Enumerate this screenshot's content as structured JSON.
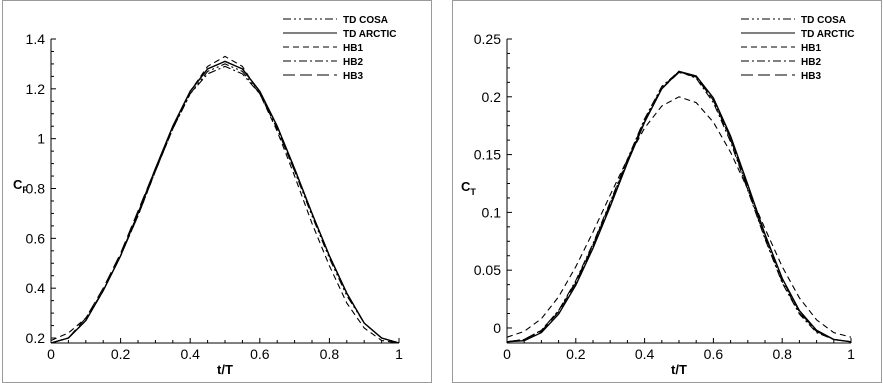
{
  "chart_data": [
    {
      "type": "line",
      "xlabel": "t/T",
      "ylabel": "C",
      "ylabel_sub": "F",
      "xlim": [
        0,
        1
      ],
      "ylim": [
        0.18,
        1.4
      ],
      "xticks": [
        "0",
        "0.2",
        "0.4",
        "0.6",
        "0.8",
        "1"
      ],
      "yticks": [
        "0.2",
        "0.4",
        "0.6",
        "0.8",
        "1",
        "1.2",
        "1.4"
      ],
      "legend_position": "top-right",
      "grid": false,
      "series": [
        {
          "name": "TD COSA",
          "style": "dashdotdot",
          "x": [
            0,
            0.05,
            0.1,
            0.15,
            0.2,
            0.25,
            0.3,
            0.35,
            0.4,
            0.45,
            0.5,
            0.55,
            0.6,
            0.65,
            0.7,
            0.75,
            0.8,
            0.85,
            0.9,
            0.95,
            1
          ],
          "y": [
            0.18,
            0.2,
            0.27,
            0.39,
            0.53,
            0.69,
            0.87,
            1.04,
            1.18,
            1.27,
            1.3,
            1.27,
            1.18,
            1.04,
            0.87,
            0.69,
            0.52,
            0.37,
            0.26,
            0.2,
            0.18
          ]
        },
        {
          "name": "TD ARCTIC",
          "style": "solid",
          "x": [
            0,
            0.05,
            0.1,
            0.15,
            0.2,
            0.25,
            0.3,
            0.35,
            0.4,
            0.45,
            0.5,
            0.55,
            0.6,
            0.65,
            0.7,
            0.75,
            0.8,
            0.85,
            0.9,
            0.95,
            1
          ],
          "y": [
            0.18,
            0.2,
            0.27,
            0.39,
            0.53,
            0.7,
            0.88,
            1.05,
            1.19,
            1.28,
            1.31,
            1.28,
            1.19,
            1.05,
            0.88,
            0.7,
            0.53,
            0.38,
            0.26,
            0.2,
            0.18
          ]
        },
        {
          "name": "HB1",
          "style": "dash",
          "x": [
            0,
            0.05,
            0.1,
            0.15,
            0.2,
            0.25,
            0.3,
            0.35,
            0.4,
            0.45,
            0.5,
            0.55,
            0.6,
            0.65,
            0.7,
            0.75,
            0.8,
            0.85,
            0.9,
            0.95,
            1
          ],
          "y": [
            0.19,
            0.22,
            0.28,
            0.39,
            0.53,
            0.69,
            0.87,
            1.04,
            1.19,
            1.29,
            1.33,
            1.29,
            1.18,
            1.03,
            0.85,
            0.66,
            0.49,
            0.34,
            0.24,
            0.19,
            0.18
          ]
        },
        {
          "name": "HB2",
          "style": "dashdot",
          "x": [
            0,
            0.05,
            0.1,
            0.15,
            0.2,
            0.25,
            0.3,
            0.35,
            0.4,
            0.45,
            0.5,
            0.55,
            0.6,
            0.65,
            0.7,
            0.75,
            0.8,
            0.85,
            0.9,
            0.95,
            1
          ],
          "y": [
            0.18,
            0.2,
            0.27,
            0.39,
            0.53,
            0.7,
            0.87,
            1.04,
            1.18,
            1.26,
            1.29,
            1.26,
            1.18,
            1.04,
            0.87,
            0.7,
            0.53,
            0.38,
            0.26,
            0.2,
            0.18
          ]
        },
        {
          "name": "HB3",
          "style": "longdash",
          "x": [
            0,
            0.05,
            0.1,
            0.15,
            0.2,
            0.25,
            0.3,
            0.35,
            0.4,
            0.45,
            0.5,
            0.55,
            0.6,
            0.65,
            0.7,
            0.75,
            0.8,
            0.85,
            0.9,
            0.95,
            1
          ],
          "y": [
            0.18,
            0.2,
            0.28,
            0.4,
            0.54,
            0.71,
            0.88,
            1.05,
            1.19,
            1.28,
            1.31,
            1.28,
            1.19,
            1.05,
            0.88,
            0.7,
            0.53,
            0.38,
            0.26,
            0.2,
            0.18
          ]
        }
      ]
    },
    {
      "type": "line",
      "xlabel": "t/T",
      "ylabel": "C",
      "ylabel_sub": "T",
      "xlim": [
        0,
        1
      ],
      "ylim": [
        -0.013,
        0.25
      ],
      "xticks": [
        "0",
        "0.2",
        "0.4",
        "0.6",
        "0.8",
        "1"
      ],
      "yticks": [
        "0",
        "0.05",
        "0.1",
        "0.15",
        "0.2",
        "0.25"
      ],
      "legend_position": "top-right",
      "grid": false,
      "series": [
        {
          "name": "TD COSA",
          "style": "dashdotdot",
          "x": [
            0,
            0.05,
            0.1,
            0.15,
            0.2,
            0.25,
            0.3,
            0.35,
            0.4,
            0.45,
            0.5,
            0.55,
            0.6,
            0.65,
            0.7,
            0.75,
            0.8,
            0.85,
            0.9,
            0.95,
            1
          ],
          "y": [
            -0.012,
            -0.01,
            -0.002,
            0.015,
            0.04,
            0.072,
            0.108,
            0.145,
            0.18,
            0.208,
            0.222,
            0.217,
            0.197,
            0.163,
            0.12,
            0.078,
            0.04,
            0.013,
            -0.003,
            -0.01,
            -0.012
          ]
        },
        {
          "name": "TD ARCTIC",
          "style": "solid",
          "x": [
            0,
            0.05,
            0.1,
            0.15,
            0.2,
            0.25,
            0.3,
            0.35,
            0.4,
            0.45,
            0.5,
            0.55,
            0.6,
            0.65,
            0.7,
            0.75,
            0.8,
            0.85,
            0.9,
            0.95,
            1
          ],
          "y": [
            -0.012,
            -0.011,
            -0.004,
            0.012,
            0.037,
            0.069,
            0.105,
            0.143,
            0.178,
            0.207,
            0.222,
            0.218,
            0.199,
            0.166,
            0.124,
            0.081,
            0.043,
            0.015,
            -0.002,
            -0.01,
            -0.012
          ]
        },
        {
          "name": "HB1",
          "style": "dash",
          "x": [
            0,
            0.05,
            0.1,
            0.15,
            0.2,
            0.25,
            0.3,
            0.35,
            0.4,
            0.45,
            0.5,
            0.55,
            0.6,
            0.65,
            0.7,
            0.75,
            0.8,
            0.85,
            0.9,
            0.95,
            1
          ],
          "y": [
            -0.008,
            -0.003,
            0.008,
            0.027,
            0.053,
            0.083,
            0.115,
            0.146,
            0.173,
            0.192,
            0.2,
            0.195,
            0.178,
            0.152,
            0.12,
            0.086,
            0.053,
            0.026,
            0.007,
            -0.004,
            -0.008
          ]
        },
        {
          "name": "HB2",
          "style": "dashdot",
          "x": [
            0,
            0.05,
            0.1,
            0.15,
            0.2,
            0.25,
            0.3,
            0.35,
            0.4,
            0.45,
            0.5,
            0.55,
            0.6,
            0.65,
            0.7,
            0.75,
            0.8,
            0.85,
            0.9,
            0.95,
            1
          ],
          "y": [
            -0.012,
            -0.01,
            -0.002,
            0.015,
            0.041,
            0.073,
            0.109,
            0.146,
            0.181,
            0.209,
            0.222,
            0.216,
            0.195,
            0.161,
            0.119,
            0.077,
            0.039,
            0.012,
            -0.004,
            -0.01,
            -0.012
          ]
        },
        {
          "name": "HB3",
          "style": "longdash",
          "x": [
            0,
            0.05,
            0.1,
            0.15,
            0.2,
            0.25,
            0.3,
            0.35,
            0.4,
            0.45,
            0.5,
            0.55,
            0.6,
            0.65,
            0.7,
            0.75,
            0.8,
            0.85,
            0.9,
            0.95,
            1
          ],
          "y": [
            -0.012,
            -0.01,
            -0.003,
            0.014,
            0.039,
            0.071,
            0.107,
            0.144,
            0.179,
            0.207,
            0.221,
            0.217,
            0.197,
            0.164,
            0.122,
            0.08,
            0.042,
            0.014,
            -0.003,
            -0.01,
            -0.012
          ]
        }
      ]
    }
  ]
}
